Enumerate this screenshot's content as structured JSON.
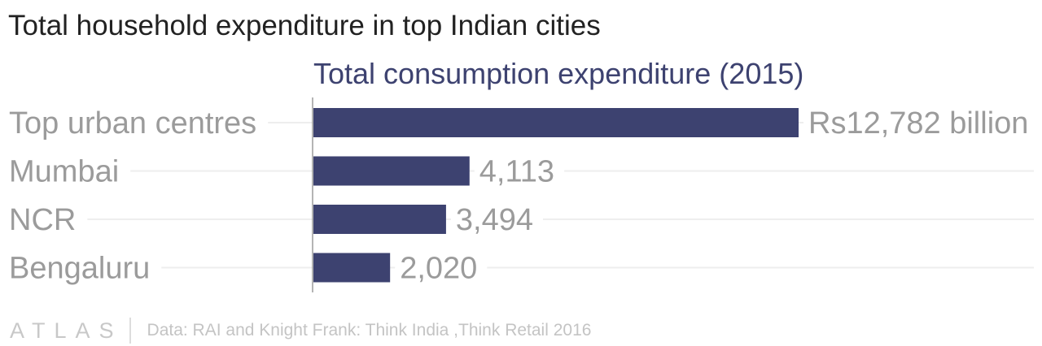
{
  "title": "Total household expenditure in top Indian cities",
  "chart_data": {
    "type": "bar",
    "orientation": "horizontal",
    "subtitle": "Total consumption expenditure (2015)",
    "categories": [
      "Top urban centres",
      "Mumbai",
      "NCR",
      "Bengaluru"
    ],
    "values": [
      12782,
      4113,
      3494,
      2020
    ],
    "value_labels": [
      "Rs12,782 billion",
      "4,113",
      "3,494",
      "2,020"
    ],
    "xlim": [
      0,
      12782
    ],
    "bar_color": "#3d4270",
    "grid": true
  },
  "footer": {
    "logo": "ATLAS",
    "source": "Data: RAI and Knight Frank: Think India ,Think Retail 2016"
  }
}
